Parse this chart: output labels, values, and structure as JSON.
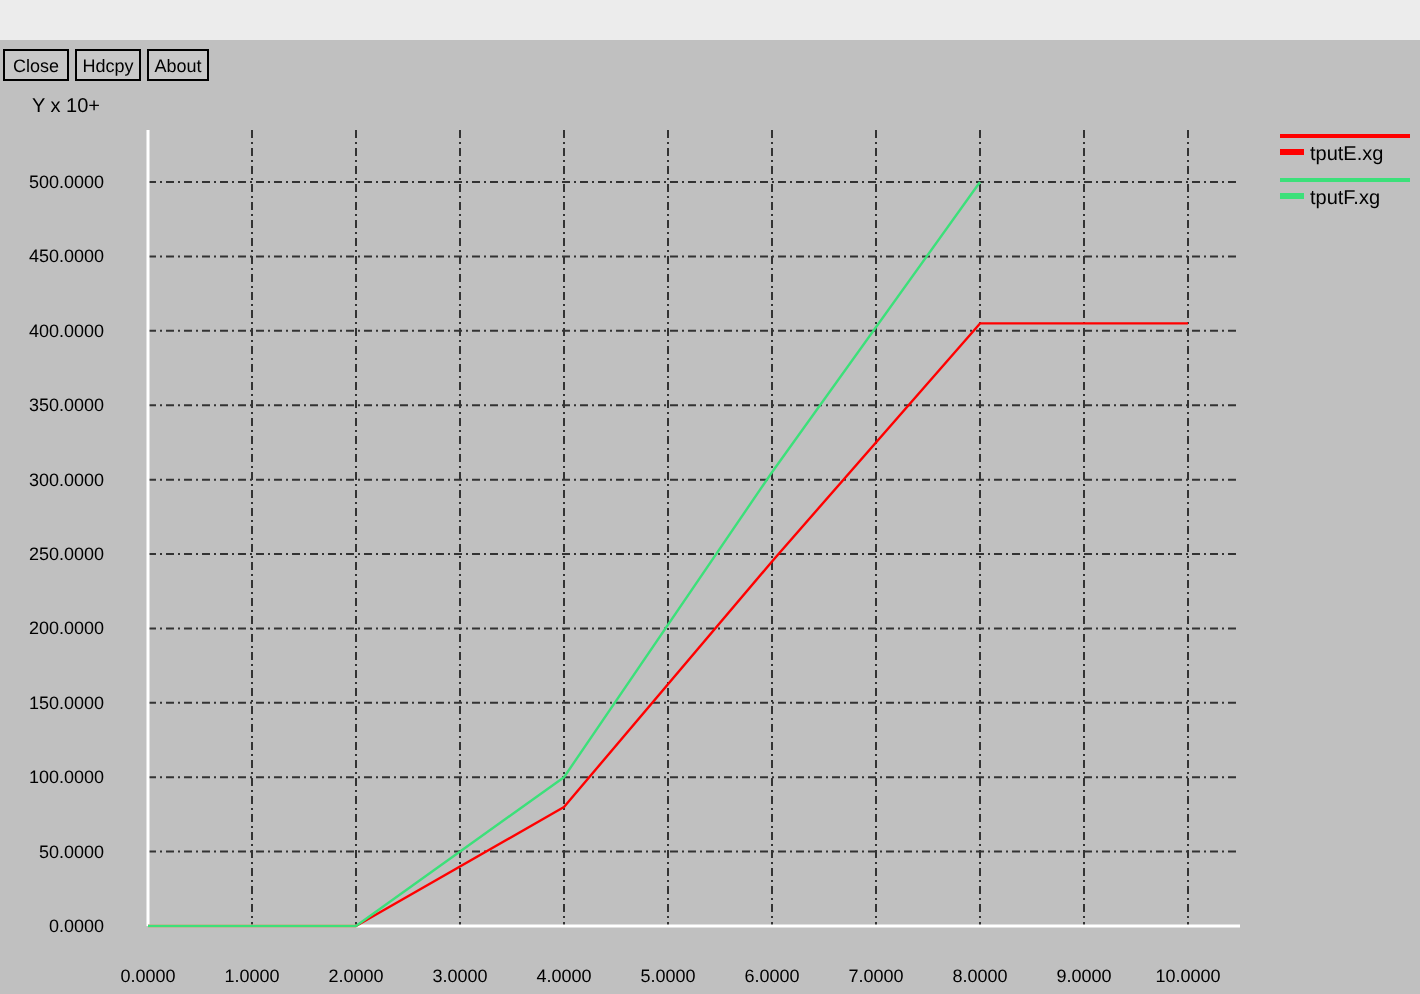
{
  "chart_data": {
    "type": "line",
    "ylabel": "Y x 10+",
    "annotations": [
      "Close",
      "Hdcpy",
      "About"
    ],
    "xlim": [
      0,
      10.5
    ],
    "ylim": [
      0,
      535
    ],
    "xticks": [
      {
        "value": 0,
        "label": "0.0000"
      },
      {
        "value": 1,
        "label": "1.0000"
      },
      {
        "value": 2,
        "label": "2.0000"
      },
      {
        "value": 3,
        "label": "3.0000"
      },
      {
        "value": 4,
        "label": "4.0000"
      },
      {
        "value": 5,
        "label": "5.0000"
      },
      {
        "value": 6,
        "label": "6.0000"
      },
      {
        "value": 7,
        "label": "7.0000"
      },
      {
        "value": 8,
        "label": "8.0000"
      },
      {
        "value": 9,
        "label": "9.0000"
      },
      {
        "value": 10,
        "label": "10.0000"
      }
    ],
    "yticks": [
      {
        "value": 0,
        "label": "0.0000"
      },
      {
        "value": 50,
        "label": "50.0000"
      },
      {
        "value": 100,
        "label": "100.0000"
      },
      {
        "value": 150,
        "label": "150.0000"
      },
      {
        "value": 200,
        "label": "200.0000"
      },
      {
        "value": 250,
        "label": "250.0000"
      },
      {
        "value": 300,
        "label": "300.0000"
      },
      {
        "value": 350,
        "label": "350.0000"
      },
      {
        "value": 400,
        "label": "400.0000"
      },
      {
        "value": 450,
        "label": "450.0000"
      },
      {
        "value": 500,
        "label": "500.0000"
      }
    ],
    "grid": true,
    "legend": "top right",
    "marker": "none",
    "line_style": "solid",
    "series": [
      {
        "name": "tputE.xg",
        "color": "#ff0000",
        "x": [
          0,
          2,
          4,
          6,
          8,
          10
        ],
        "values": [
          0,
          0,
          80,
          245,
          405,
          405
        ]
      },
      {
        "name": "tputF.xg",
        "color": "#3ce07a",
        "x": [
          0,
          2,
          4,
          6,
          8
        ],
        "values": [
          0,
          0,
          100,
          305,
          500
        ]
      }
    ]
  }
}
